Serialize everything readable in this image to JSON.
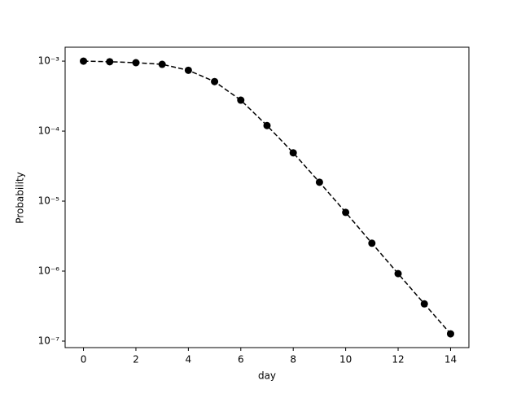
{
  "chart_data": {
    "type": "line",
    "x_label": "day",
    "y_label": "Probability",
    "x": [
      0,
      1,
      2,
      3,
      4,
      5,
      6,
      7,
      8,
      9,
      10,
      11,
      12,
      13,
      14
    ],
    "series": [
      {
        "color": "#000000",
        "values": [
          0.001,
          0.00098,
          0.00095,
          0.0009,
          0.00074,
          0.00051,
          0.000277,
          0.00012,
          4.9e-05,
          1.86e-05,
          6.9e-06,
          2.5e-06,
          9.2e-07,
          3.4e-07,
          1.27e-07
        ]
      }
    ],
    "xlim": [
      -0.7,
      14.7
    ],
    "xticks": [
      0,
      2,
      4,
      6,
      8,
      10,
      12,
      14
    ],
    "ylim": [
      8.07e-08,
      0.00158
    ],
    "log_y": true,
    "yticks": [
      {
        "value": 1e-07,
        "label": "10⁻⁷"
      },
      {
        "value": 1e-06,
        "label": "10⁻⁶"
      },
      {
        "value": 1e-05,
        "label": "10⁻⁵"
      },
      {
        "value": 0.0001,
        "label": "10⁻⁴"
      },
      {
        "value": 0.001,
        "label": "10⁻³"
      }
    ]
  }
}
